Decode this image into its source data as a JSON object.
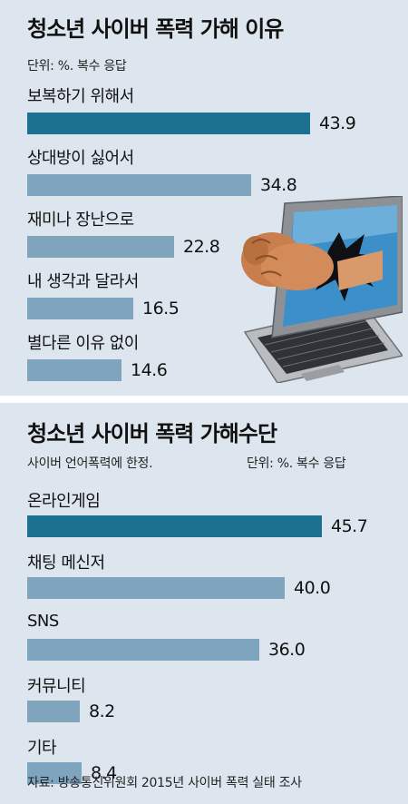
{
  "chart_data": [
    {
      "type": "bar",
      "orientation": "horizontal",
      "title": "청소년 사이버 폭력 가해 이유",
      "unit_note": "단위: %.  복수 응답",
      "categories": [
        "보복하기 위해서",
        "상대방이 싫어서",
        "재미나 장난으로",
        "내 생각과 달라서",
        "별다른 이유 없이"
      ],
      "values": [
        43.9,
        34.8,
        22.8,
        16.5,
        14.6
      ],
      "value_labels": [
        "43.9",
        "34.8",
        "22.8",
        "16.5",
        "14.6"
      ],
      "highlight_index": 0
    },
    {
      "type": "bar",
      "orientation": "horizontal",
      "title": "청소년 사이버 폭력 가해수단",
      "subtitle": "사이버 언어폭력에 한정.",
      "unit_note": "단위: %.  복수 응답",
      "categories": [
        "온라인게임",
        "채팅 메신저",
        "SNS",
        "커뮤니티",
        "기타"
      ],
      "values": [
        45.7,
        40.0,
        36.0,
        8.2,
        8.4
      ],
      "value_labels": [
        "45.7",
        "40.0",
        "36.0",
        "8.2",
        "8.4"
      ],
      "highlight_index": 0
    }
  ],
  "source": "자료: 방송통신위원회 2015년 사이버 폭력 실태 조사",
  "colors": {
    "background": "#dde6ee",
    "highlight_bar": "#1c7191",
    "bar": "#7fa4bd"
  },
  "illustration": "fist-punching-through-laptop-screen"
}
